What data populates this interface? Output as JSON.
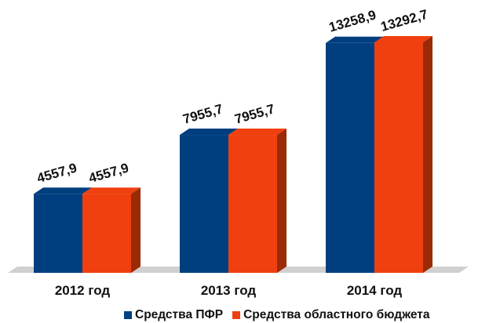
{
  "chart_data": {
    "type": "bar",
    "categories": [
      "2012 год",
      "2013 год",
      "2014 год"
    ],
    "series": [
      {
        "name": "Средства ПФР",
        "values": [
          4557.9,
          7955.7,
          13258.9
        ],
        "labels": [
          "4557,9",
          "7955,7",
          "13258,9"
        ],
        "color": "#003F7F"
      },
      {
        "name": "Средства областного бюджета",
        "values": [
          4557.9,
          7955.7,
          13292.7
        ],
        "labels": [
          "4557,9",
          "7955,7",
          "13292,7"
        ],
        "color": "#F0400F"
      }
    ],
    "side_color": "#9B2A06",
    "floor_color": "#D0D0D0",
    "ylim": [
      0,
      13292.7
    ],
    "grid": false,
    "legend_position": "bottom",
    "title": "",
    "xlabel": "",
    "ylabel": ""
  }
}
